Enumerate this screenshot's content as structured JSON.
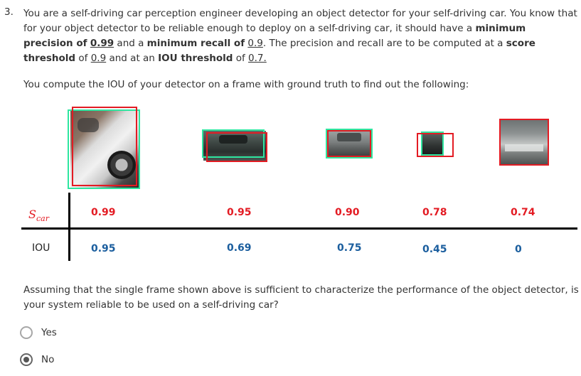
{
  "question": {
    "number": "3.",
    "intro": "You are a self-driving car perception engineer developing an object detector for your self-driving car. You know that for your object detector to be reliable enough to deploy on a self-driving car, it should have a ",
    "min_precision_label": "minimum precision of",
    "min_precision_value": "0.99",
    "and_a": " and a ",
    "min_recall_label": "minimum recall of",
    "min_recall_value": "0.9",
    "computed_text": ". The precision and recall are to be computed at a ",
    "score_threshold_label": "score threshold",
    "of_text": " of ",
    "score_threshold_value": "0.9",
    "and_at_an": " and at an ",
    "iou_threshold_label": "IOU threshold",
    "iou_threshold_value": "0.7.",
    "sub": "You compute the IOU of your detector on a frame with ground truth to find out the following:",
    "followup": "Assuming that the single frame shown above is sufficient to characterize the performance of the object detector, is your system reliable to be used on a self-driving car?"
  },
  "table": {
    "score_label_base": "S",
    "score_label_sub": "car",
    "iou_label": "IOU",
    "scores": [
      "0.99",
      "0.95",
      "0.90",
      "0.78",
      "0.74"
    ],
    "ious": [
      "0.95",
      "0.69",
      "0.75",
      "0.45",
      "0"
    ]
  },
  "options": [
    {
      "label": "Yes",
      "selected": false
    },
    {
      "label": "No",
      "selected": true
    }
  ],
  "colors": {
    "ground_truth_box": "#2ee6a0",
    "prediction_box": "#e31b23",
    "score_text": "#e31b23",
    "iou_text": "#1b5e9e"
  }
}
